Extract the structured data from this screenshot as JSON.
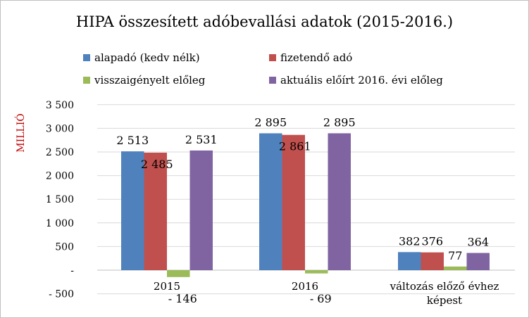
{
  "chart_data": {
    "type": "bar",
    "title": "HIPA összesített adóbevallási adatok (2015-2016.)",
    "ylabel": "MILLIÓ",
    "ylim": [
      -500,
      3500
    ],
    "yticks": [
      -500,
      0,
      500,
      1000,
      1500,
      2000,
      2500,
      3000,
      3500
    ],
    "ytick_labels": [
      "- 500",
      "-",
      "500",
      "1 000",
      "1 500",
      "2 000",
      "2 500",
      "3 000",
      "3 500"
    ],
    "grid": true,
    "legend_position": "top",
    "categories": [
      "2015",
      "2016",
      "változás előző évhez képest"
    ],
    "series": [
      {
        "name": "alapadó (kedv nélk)",
        "color": "#4f81bd",
        "values": [
          2513,
          2895,
          382
        ],
        "labels": [
          "2 513",
          "2 895",
          "382"
        ]
      },
      {
        "name": "fizetendő adó",
        "color": "#c0504d",
        "values": [
          2485,
          2861,
          376
        ],
        "labels": [
          "2 485",
          "2 861",
          "376"
        ]
      },
      {
        "name": "visszaigényelt előleg",
        "color": "#9bbb59",
        "values": [
          -146,
          -69,
          77
        ],
        "labels": [
          "- 146",
          "- 69",
          "77"
        ]
      },
      {
        "name": "aktuális előírt 2016. évi előleg",
        "color": "#8064a2",
        "values": [
          2531,
          2895,
          364
        ],
        "labels": [
          "2 531",
          "2 895",
          "364"
        ]
      }
    ]
  }
}
